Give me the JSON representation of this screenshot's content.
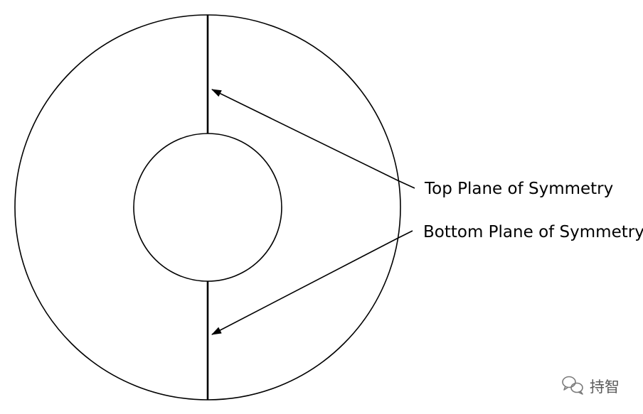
{
  "labels": {
    "top_plane": "Top Plane of Symmetry",
    "bottom_plane": "Bottom Plane of Symmetry"
  },
  "watermark": {
    "icon": "wechat-icon",
    "text": "持智"
  },
  "colors": {
    "line": "#000000",
    "background": "#ffffff",
    "watermark": "#5a5a5a"
  }
}
